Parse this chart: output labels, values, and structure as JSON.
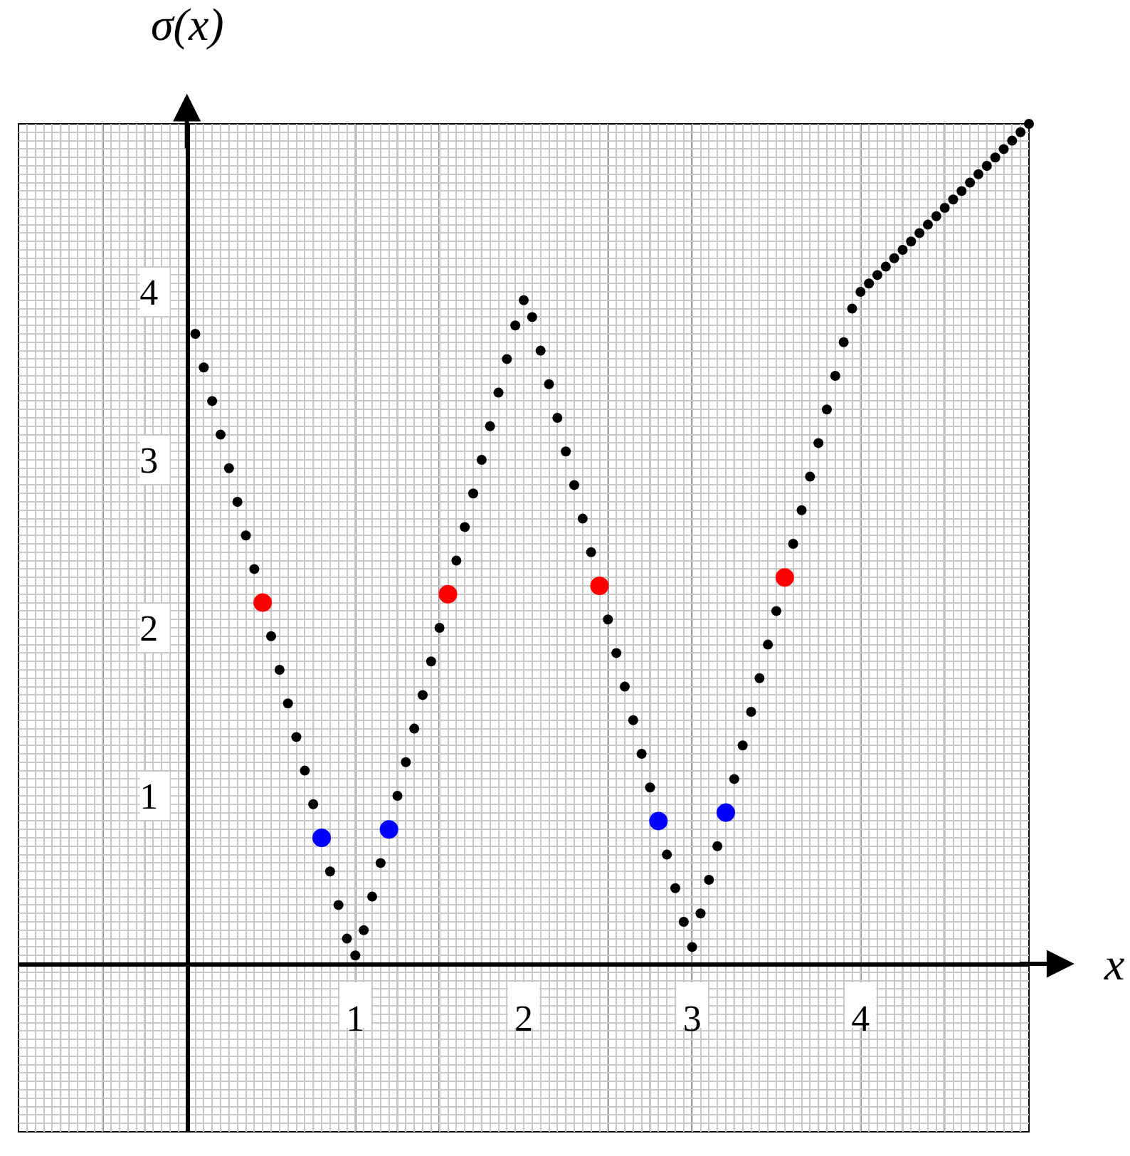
{
  "chart_data": {
    "type": "scatter",
    "xlabel": "x",
    "ylabel": "σ(x)",
    "xlim": [
      -1,
      5
    ],
    "ylim": [
      -1,
      5
    ],
    "xticks": [
      1,
      2,
      3,
      4
    ],
    "yticks": [
      1,
      2,
      3,
      4
    ],
    "grid": true,
    "marker": "circle",
    "series": [
      {
        "color": "#000000",
        "x": [
          0.05,
          0.1,
          0.15,
          0.2,
          0.25,
          0.3,
          0.35,
          0.4,
          0.5,
          0.55,
          0.6,
          0.65,
          0.7,
          0.75,
          0.85,
          0.9,
          0.95,
          1.0,
          1.05,
          1.1,
          1.15,
          1.25,
          1.3,
          1.35,
          1.4,
          1.45,
          1.5,
          1.6,
          1.65,
          1.7,
          1.75,
          1.8,
          1.85,
          1.9,
          1.95,
          2.0,
          2.05,
          2.1,
          2.15,
          2.2,
          2.25,
          2.3,
          2.35,
          2.4,
          2.5,
          2.55,
          2.6,
          2.65,
          2.7,
          2.75,
          2.85,
          2.9,
          2.95,
          3.0,
          3.05,
          3.1,
          3.15,
          3.25,
          3.3,
          3.35,
          3.4,
          3.45,
          3.5,
          3.6,
          3.65,
          3.7,
          3.75,
          3.8,
          3.85,
          3.9,
          3.95,
          4.0,
          4.05,
          4.1,
          4.15,
          4.2,
          4.25,
          4.3,
          4.35,
          4.4,
          4.45,
          4.5,
          4.55,
          4.6,
          4.65,
          4.7,
          4.75,
          4.8,
          4.85,
          4.9,
          4.95,
          5.0
        ],
        "values": [
          3.75,
          3.55,
          3.35,
          3.15,
          2.95,
          2.75,
          2.55,
          2.35,
          1.95,
          1.75,
          1.55,
          1.35,
          1.15,
          0.95,
          0.55,
          0.35,
          0.15,
          0.05,
          0.2,
          0.4,
          0.6,
          1.0,
          1.2,
          1.4,
          1.6,
          1.8,
          2.0,
          2.4,
          2.6,
          2.8,
          3.0,
          3.2,
          3.4,
          3.6,
          3.8,
          3.95,
          3.85,
          3.65,
          3.45,
          3.25,
          3.05,
          2.85,
          2.65,
          2.45,
          2.05,
          1.85,
          1.65,
          1.45,
          1.25,
          1.05,
          0.65,
          0.45,
          0.25,
          0.1,
          0.3,
          0.5,
          0.7,
          1.1,
          1.3,
          1.5,
          1.7,
          1.9,
          2.1,
          2.5,
          2.7,
          2.9,
          3.1,
          3.3,
          3.5,
          3.7,
          3.9,
          4.0,
          4.05,
          4.1,
          4.15,
          4.2,
          4.25,
          4.3,
          4.35,
          4.4,
          4.45,
          4.5,
          4.55,
          4.6,
          4.65,
          4.7,
          4.75,
          4.8,
          4.85,
          4.9,
          4.95,
          5.0
        ]
      },
      {
        "color": "#ff0000",
        "x": [
          0.45,
          1.55,
          2.45,
          3.55
        ],
        "values": [
          2.15,
          2.2,
          2.25,
          2.3
        ]
      },
      {
        "color": "#0000ff",
        "x": [
          0.8,
          1.2,
          2.8,
          3.2
        ],
        "values": [
          0.75,
          0.8,
          0.85,
          0.9
        ]
      }
    ]
  }
}
